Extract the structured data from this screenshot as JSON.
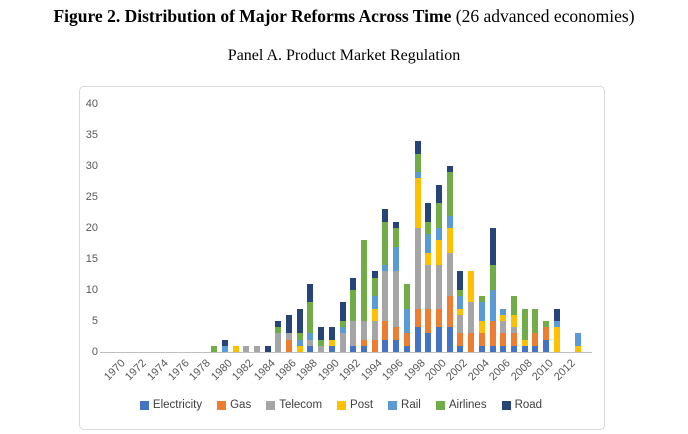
{
  "figure": {
    "title_bold": "Figure 2. Distribution of Major Reforms Across Time",
    "title_normal": " (26 advanced economies)",
    "panel_title": "Panel A. Product Market Regulation"
  },
  "chart_data": {
    "type": "bar",
    "stacked": true,
    "title": "Panel A. Product Market Regulation",
    "xlabel": "",
    "ylabel": "",
    "ylim": [
      0,
      40
    ],
    "yticks": [
      0,
      5,
      10,
      15,
      20,
      25,
      30,
      35,
      40
    ],
    "grid": false,
    "legend_position": "bottom",
    "x": [
      1970,
      1971,
      1972,
      1973,
      1974,
      1975,
      1976,
      1977,
      1978,
      1979,
      1980,
      1981,
      1982,
      1983,
      1984,
      1985,
      1986,
      1987,
      1988,
      1989,
      1990,
      1991,
      1992,
      1993,
      1994,
      1995,
      1996,
      1997,
      1998,
      1999,
      2000,
      2001,
      2002,
      2003,
      2004,
      2005,
      2006,
      2007,
      2008,
      2009,
      2010,
      2011,
      2012,
      2013
    ],
    "x_tick_labels": [
      "1970",
      "1972",
      "1974",
      "1976",
      "1978",
      "1980",
      "1982",
      "1984",
      "1986",
      "1988",
      "1990",
      "1992",
      "1994",
      "1996",
      "1998",
      "2000",
      "2002",
      "2004",
      "2006",
      "2008",
      "2010",
      "2012"
    ],
    "series": [
      {
        "name": "Electricity",
        "color": "#4472C4",
        "values": [
          0,
          0,
          0,
          0,
          0,
          0,
          0,
          0,
          0,
          0,
          0,
          0,
          0,
          0,
          0,
          0,
          0,
          0,
          1,
          0,
          1,
          0,
          1,
          1,
          0,
          2,
          2,
          1,
          4,
          3,
          4,
          4,
          1,
          0,
          1,
          1,
          1,
          1,
          1,
          1,
          2,
          0,
          0,
          0
        ]
      },
      {
        "name": "Gas",
        "color": "#ED7D31",
        "values": [
          0,
          0,
          0,
          0,
          0,
          0,
          0,
          0,
          0,
          0,
          0,
          0,
          0,
          0,
          0,
          0,
          2,
          0,
          0,
          0,
          0,
          0,
          0,
          1,
          2,
          3,
          2,
          2,
          3,
          4,
          3,
          5,
          2,
          3,
          2,
          4,
          2,
          2,
          0,
          2,
          2,
          0,
          0,
          0
        ]
      },
      {
        "name": "Telecom",
        "color": "#A5A5A5",
        "values": [
          0,
          0,
          0,
          0,
          0,
          0,
          0,
          0,
          0,
          0,
          0,
          0,
          1,
          1,
          0,
          3,
          1,
          0,
          1,
          1,
          0,
          3,
          4,
          3,
          3,
          8,
          9,
          0,
          13,
          7,
          7,
          7,
          3,
          5,
          0,
          0,
          2,
          1,
          0,
          0,
          0,
          0,
          0,
          0
        ]
      },
      {
        "name": "Post",
        "color": "#FFC000",
        "values": [
          0,
          0,
          0,
          0,
          0,
          0,
          0,
          0,
          0,
          0,
          0,
          1,
          0,
          0,
          0,
          0,
          0,
          1,
          0,
          0,
          1,
          0,
          0,
          0,
          2,
          0,
          0,
          0,
          8,
          2,
          4,
          4,
          1,
          5,
          2,
          0,
          1,
          2,
          1,
          0,
          0,
          4,
          0,
          1
        ]
      },
      {
        "name": "Rail",
        "color": "#5B9BD5",
        "values": [
          0,
          0,
          0,
          0,
          0,
          0,
          0,
          0,
          0,
          0,
          1,
          0,
          0,
          0,
          0,
          0,
          0,
          1,
          1,
          0,
          0,
          1,
          0,
          0,
          2,
          1,
          4,
          4,
          1,
          3,
          2,
          2,
          2,
          0,
          3,
          5,
          1,
          0,
          0,
          0,
          0,
          1,
          0,
          2
        ]
      },
      {
        "name": "Airlines",
        "color": "#70AD47",
        "values": [
          0,
          0,
          0,
          0,
          0,
          0,
          0,
          0,
          0,
          1,
          0,
          0,
          0,
          0,
          0,
          1,
          0,
          1,
          5,
          1,
          0,
          1,
          5,
          13,
          3,
          7,
          3,
          4,
          3,
          2,
          4,
          7,
          1,
          0,
          1,
          4,
          0,
          3,
          5,
          4,
          1,
          0,
          0,
          0
        ]
      },
      {
        "name": "Road",
        "color": "#264478",
        "values": [
          0,
          0,
          0,
          0,
          0,
          0,
          0,
          0,
          0,
          0,
          1,
          0,
          0,
          0,
          1,
          1,
          3,
          4,
          3,
          2,
          2,
          3,
          2,
          0,
          1,
          2,
          1,
          0,
          2,
          3,
          3,
          1,
          3,
          0,
          0,
          6,
          0,
          0,
          0,
          0,
          0,
          2,
          0,
          0
        ]
      }
    ]
  }
}
